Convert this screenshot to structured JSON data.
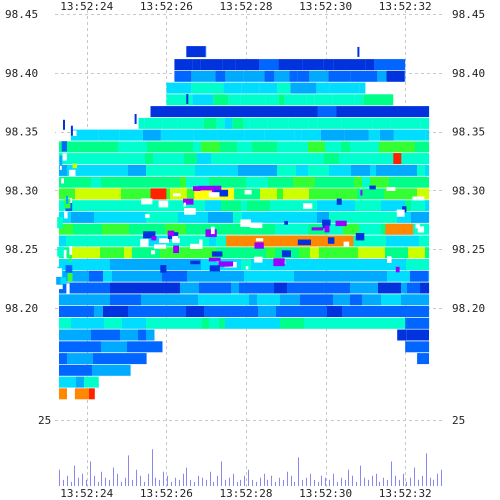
{
  "chart_data": {
    "type": "heatmap",
    "title": "",
    "x_ticks": [
      "13:52:24",
      "13:52:26",
      "13:52:28",
      "13:52:30",
      "13:52:32"
    ],
    "y_ticks": [
      "98.45",
      "98.40",
      "98.35",
      "98.30",
      "98.25",
      "98.20"
    ],
    "volume_tick": "25",
    "xlim": [
      "13:52:23.2",
      "13:52:33.0"
    ],
    "ylim": [
      98.165,
      98.45
    ],
    "volume_ylim": [
      0,
      40
    ],
    "grid": true,
    "legend": "none",
    "colors": {
      "palette": [
        "#0033dd",
        "#0066ff",
        "#00aaff",
        "#00ddff",
        "#00ffcc",
        "#00ff88",
        "#33ff33",
        "#ccff00",
        "#ffff00",
        "#ff8800",
        "#ff2200",
        "#9900ff"
      ],
      "volume_bar": "#8888ee"
    },
    "heatmap_bands": [
      {
        "price": 98.418,
        "t0": 26.5,
        "t1": 27.0,
        "color_index": 0
      },
      {
        "price": 98.407,
        "t0": 26.2,
        "t1": 32.0,
        "color_index": 0
      },
      {
        "price": 98.397,
        "t0": 26.2,
        "t1": 32.0,
        "color_index": 1
      },
      {
        "price": 98.387,
        "t0": 26.0,
        "t1": 31.0,
        "color_index": 3
      },
      {
        "price": 98.377,
        "t0": 26.0,
        "t1": 31.7,
        "color_index": 4
      },
      {
        "price": 98.367,
        "t0": 25.6,
        "t1": 32.6,
        "color_index": 0
      },
      {
        "price": 98.357,
        "t0": 25.3,
        "t1": 32.6,
        "color_index": 4
      },
      {
        "price": 98.347,
        "t0": 23.6,
        "t1": 32.6,
        "color_index": 3
      },
      {
        "price": 98.337,
        "t0": 23.3,
        "t1": 32.6,
        "color_index": 5
      },
      {
        "price": 98.327,
        "t0": 23.3,
        "t1": 32.6,
        "color_index": 4
      },
      {
        "price": 98.317,
        "t0": 23.3,
        "t1": 32.6,
        "color_index": 3
      },
      {
        "price": 98.307,
        "t0": 23.3,
        "t1": 32.6,
        "color_index": 5
      },
      {
        "price": 98.297,
        "t0": 23.3,
        "t1": 32.6,
        "color_index": 6
      },
      {
        "price": 98.287,
        "t0": 23.3,
        "t1": 32.6,
        "color_index": 4
      },
      {
        "price": 98.277,
        "t0": 23.3,
        "t1": 32.6,
        "color_index": 3
      },
      {
        "price": 98.267,
        "t0": 23.3,
        "t1": 32.6,
        "color_index": 5
      },
      {
        "price": 98.257,
        "t0": 23.3,
        "t1": 32.6,
        "color_index": 4
      },
      {
        "price": 98.247,
        "t0": 23.3,
        "t1": 32.6,
        "color_index": 6
      },
      {
        "price": 98.237,
        "t0": 23.3,
        "t1": 32.6,
        "color_index": 3
      },
      {
        "price": 98.227,
        "t0": 23.3,
        "t1": 32.6,
        "color_index": 2
      },
      {
        "price": 98.217,
        "t0": 23.3,
        "t1": 32.6,
        "color_index": 1
      },
      {
        "price": 98.207,
        "t0": 23.3,
        "t1": 32.6,
        "color_index": 2
      },
      {
        "price": 98.197,
        "t0": 23.3,
        "t1": 32.6,
        "color_index": 1
      },
      {
        "price": 98.187,
        "t0": 23.3,
        "t1": 32.6,
        "color_index": 4
      },
      {
        "price": 98.177,
        "t0": 23.3,
        "t1": 25.7,
        "color_index": 2
      },
      {
        "price": 98.167,
        "t0": 23.3,
        "t1": 25.9,
        "color_index": 1
      },
      {
        "price": 98.157,
        "t0": 23.3,
        "t1": 25.5,
        "color_index": 1
      },
      {
        "price": 98.147,
        "t0": 23.3,
        "t1": 25.1,
        "color_index": 2
      },
      {
        "price": 98.137,
        "t0": 23.3,
        "t1": 24.3,
        "color_index": 3
      },
      {
        "price": 98.127,
        "t0": 23.3,
        "t1": 23.5,
        "color_index": 10
      },
      {
        "price": 98.127,
        "t0": 23.7,
        "t1": 24.2,
        "color_index": 10
      },
      {
        "price": 98.257,
        "t0": 27.5,
        "t1": 30.7,
        "color_index": 9
      },
      {
        "price": 98.327,
        "t0": 31.7,
        "t1": 31.9,
        "color_index": 10
      },
      {
        "price": 98.297,
        "t0": 25.6,
        "t1": 26.0,
        "color_index": 10
      },
      {
        "price": 98.297,
        "t0": 26.7,
        "t1": 27.7,
        "color_index": 8
      },
      {
        "price": 98.267,
        "t0": 31.5,
        "t1": 32.2,
        "color_index": 9
      },
      {
        "price": 98.187,
        "t0": 32.0,
        "t1": 32.6,
        "color_index": 1
      },
      {
        "price": 98.177,
        "t0": 31.8,
        "t1": 32.6,
        "color_index": 0
      },
      {
        "price": 98.167,
        "t0": 32.0,
        "t1": 32.6,
        "color_index": 1
      },
      {
        "price": 98.157,
        "t0": 32.3,
        "t1": 32.6,
        "color_index": 1
      }
    ],
    "volume": [
      8,
      3,
      5,
      2,
      10,
      4,
      6,
      3,
      12,
      5,
      2,
      7,
      4,
      3,
      9,
      6,
      2,
      4,
      15,
      3,
      8,
      5,
      2,
      6,
      18,
      4,
      3,
      7,
      5,
      2,
      4,
      3,
      6,
      9,
      3,
      2,
      5,
      4,
      3,
      7,
      2,
      5,
      12,
      3,
      4,
      6,
      2,
      3,
      5,
      8,
      3,
      2,
      4,
      6,
      3,
      5,
      2,
      4,
      3,
      7,
      5,
      2,
      14,
      3,
      4,
      6,
      3,
      2,
      5,
      4,
      3,
      6,
      2,
      4,
      3,
      8,
      5,
      2,
      10,
      4,
      3,
      5,
      6,
      2,
      4,
      3,
      12,
      5,
      3,
      6,
      2,
      4,
      9,
      3,
      5,
      16,
      4,
      3,
      6,
      8
    ]
  }
}
